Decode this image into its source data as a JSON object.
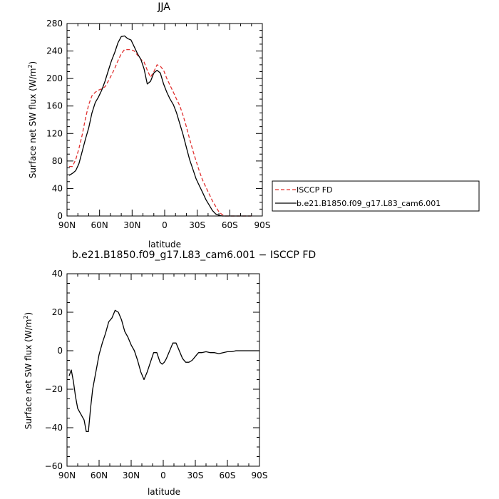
{
  "chart_data": [
    {
      "type": "line",
      "title": "JJA",
      "xlabel": "latitude",
      "ylabel": "Surface net SW flux (W/m²)",
      "ylabel_main": "Surface net SW flux (W/m",
      "ylabel_sup": "2",
      "ylabel_tail": ")",
      "xlim": [
        90,
        -90
      ],
      "ylim": [
        0,
        280
      ],
      "x_ticks": [
        90,
        60,
        30,
        0,
        -30,
        -60,
        -90
      ],
      "x_tick_labels": [
        "90N",
        "60N",
        "30N",
        "0",
        "30S",
        "60S",
        "90S"
      ],
      "y_ticks": [
        0,
        40,
        80,
        120,
        160,
        200,
        240,
        280
      ],
      "y_tick_labels": [
        "0",
        "40",
        "80",
        "120",
        "160",
        "200",
        "240",
        "280"
      ],
      "legend_placement": "right",
      "series": [
        {
          "name": "ISCCP FD",
          "color": "#e0302f",
          "dash": "dashed",
          "x": [
            88,
            85,
            82,
            79,
            76,
            73,
            70,
            67,
            64,
            61,
            58,
            55,
            52,
            49,
            46,
            43,
            40,
            37,
            34,
            31,
            28,
            25,
            22,
            19,
            16,
            13,
            10,
            7,
            4,
            1,
            -2,
            -5,
            -8,
            -11,
            -14,
            -17,
            -20,
            -23,
            -26,
            -29,
            -32,
            -35,
            -38,
            -41,
            -44,
            -47,
            -50,
            -53,
            -56,
            -59,
            -62,
            -65,
            -68,
            -71,
            -74,
            -77,
            -80
          ],
          "y": [
            72,
            72,
            82,
            98,
            118,
            142,
            162,
            175,
            180,
            183,
            185,
            188,
            196,
            205,
            215,
            226,
            236,
            242,
            242,
            242,
            240,
            234,
            228,
            224,
            212,
            202,
            210,
            220,
            218,
            212,
            200,
            190,
            180,
            170,
            160,
            146,
            130,
            112,
            95,
            80,
            65,
            52,
            42,
            32,
            22,
            14,
            6,
            2,
            0,
            0,
            0,
            0,
            0,
            0,
            0,
            0,
            0
          ]
        },
        {
          "name": "b.e21.B1850.f09_g17.L83_cam6.001",
          "color": "#000000",
          "dash": "solid",
          "x": [
            88,
            85,
            82,
            79,
            76,
            73,
            70,
            67,
            64,
            61,
            58,
            55,
            52,
            49,
            46,
            43,
            40,
            37,
            34,
            31,
            28,
            25,
            22,
            19,
            16,
            13,
            10,
            7,
            4,
            1,
            -2,
            -5,
            -8,
            -11,
            -14,
            -17,
            -20,
            -23,
            -26,
            -29,
            -32,
            -35,
            -38,
            -41,
            -44,
            -47,
            -50,
            -53,
            -56,
            -59,
            -62,
            -65,
            -68,
            -71,
            -74,
            -77,
            -80
          ],
          "y": [
            59,
            62,
            66,
            76,
            94,
            112,
            128,
            150,
            165,
            173,
            183,
            196,
            211,
            226,
            238,
            252,
            261,
            262,
            258,
            256,
            246,
            236,
            228,
            214,
            192,
            196,
            208,
            212,
            208,
            192,
            180,
            170,
            162,
            150,
            134,
            118,
            100,
            82,
            68,
            54,
            44,
            34,
            24,
            16,
            8,
            3,
            1,
            0,
            0,
            0,
            0,
            0,
            0,
            0,
            0,
            0,
            0
          ]
        }
      ]
    },
    {
      "type": "line",
      "title": "b.e21.B1850.f09_g17.L83_cam6.001 − ISCCP FD",
      "xlabel": "latitude",
      "ylabel": "Surface net SW flux (W/m²)",
      "ylabel_main": "Surface net SW flux (W/m",
      "ylabel_sup": "2",
      "ylabel_tail": ")",
      "xlim": [
        90,
        -90
      ],
      "ylim": [
        -60,
        40
      ],
      "x_ticks": [
        90,
        60,
        30,
        0,
        -30,
        -60,
        -90
      ],
      "x_tick_labels": [
        "90N",
        "60N",
        "30N",
        "0",
        "30S",
        "60S",
        "90S"
      ],
      "y_ticks": [
        -60,
        -40,
        -20,
        0,
        20,
        40
      ],
      "y_tick_labels": [
        "−60",
        "−40",
        "−20",
        "0",
        "20",
        "40"
      ],
      "series": [
        {
          "color": "#000000",
          "dash": "solid",
          "x": [
            88,
            86,
            84,
            82,
            80,
            78,
            76,
            74,
            72,
            70,
            68,
            66,
            64,
            62,
            60,
            57,
            54,
            51,
            48,
            45,
            42,
            39,
            36,
            33,
            30,
            27,
            24,
            21,
            18,
            15,
            12,
            9,
            6,
            3,
            1,
            -1,
            -3,
            -6,
            -9,
            -12,
            -15,
            -18,
            -21,
            -24,
            -27,
            -30,
            -33,
            -36,
            -40,
            -44,
            -48,
            -52,
            -56,
            -60,
            -64,
            -68,
            -72,
            -76,
            -80,
            -85,
            -90
          ],
          "y": [
            -13,
            -10,
            -16,
            -24,
            -30,
            -32,
            -34,
            -36,
            -42,
            -42,
            -30,
            -20,
            -14,
            -8,
            -2,
            4,
            9,
            15,
            17,
            21,
            20,
            16,
            10,
            7,
            3,
            0,
            -5,
            -11,
            -15,
            -11,
            -6,
            -1,
            -1,
            -6,
            -7,
            -6,
            -4,
            0,
            4,
            4,
            0,
            -4,
            -6,
            -6,
            -5,
            -3,
            -1,
            -1,
            -0.5,
            -1,
            -1,
            -1.5,
            -1,
            -0.5,
            -0.5,
            0,
            0,
            0,
            0,
            0,
            0
          ]
        }
      ]
    }
  ]
}
